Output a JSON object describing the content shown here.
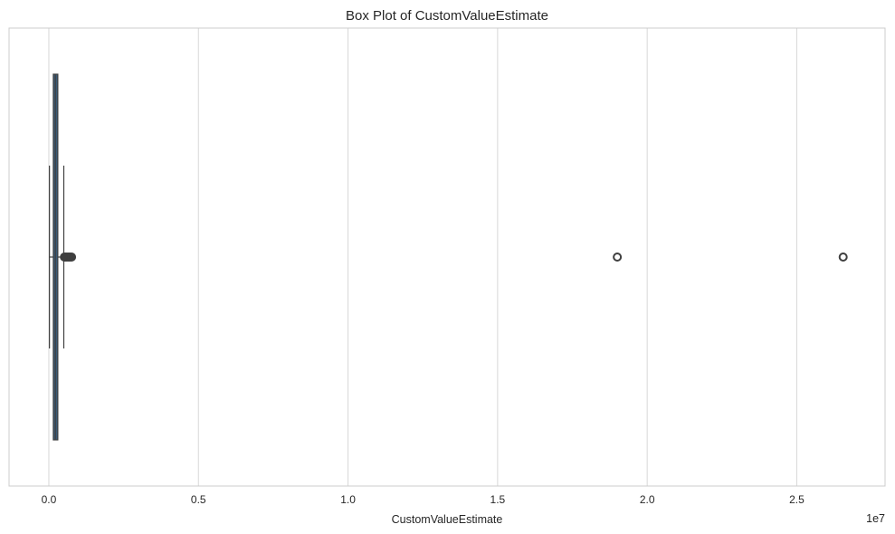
{
  "chart_data": {
    "type": "box",
    "orientation": "horizontal",
    "title": "Box Plot of CustomValueEstimate",
    "xlabel": "CustomValueEstimate",
    "ylabel": "",
    "xlim": [
      -1330000,
      27950000
    ],
    "x_scale_label": "1e7",
    "x_ticks": [
      0,
      5000000,
      10000000,
      15000000,
      20000000,
      25000000
    ],
    "x_tick_labels": [
      "0.0",
      "0.5",
      "1.0",
      "1.5",
      "2.0",
      "2.5"
    ],
    "grid": true,
    "series": [
      {
        "whisker_low": 20000,
        "q1": 150000,
        "median": 220000,
        "q3": 300000,
        "whisker_high": 500000,
        "outliers": [
          520000,
          560000,
          600000,
          640000,
          680000,
          720000,
          760000,
          19000000,
          26550000
        ]
      }
    ],
    "colors": {
      "box_fill": "#3a5a78",
      "box_edge": "#3f3f3f",
      "grid": "#d8d8d8",
      "axes_edge": "#cccccc"
    }
  }
}
